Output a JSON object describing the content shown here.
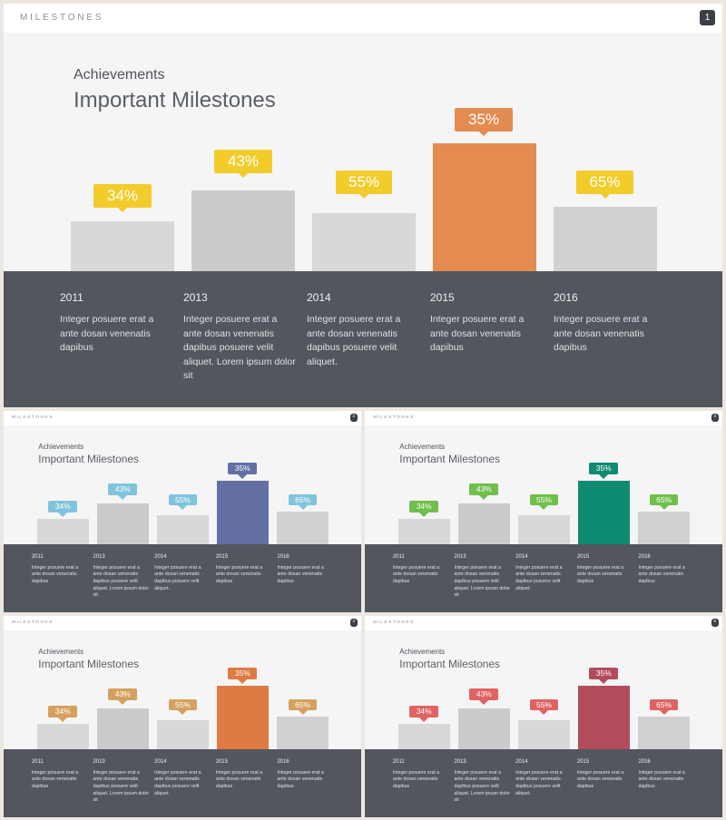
{
  "header_title": "MILESTONES",
  "subtitle": "Achievements",
  "title": "Important Milestones",
  "milestones": [
    {
      "year": "2011",
      "percent": "34%",
      "text": "Integer posuere erat a ante dosan venenatis dapibus"
    },
    {
      "year": "2013",
      "percent": "43%",
      "text": "Integer posuere erat a ante dosan venenatis dapibus posuere velit aliquet. Lorem ipsum dolor sit"
    },
    {
      "year": "2014",
      "percent": "55%",
      "text": "Integer posuere erat a ante dosan venenatis dapibus posuere velit aliquet."
    },
    {
      "year": "2015",
      "percent": "35%",
      "text": "Integer posuere erat a ante dosan venenatis dapibus"
    },
    {
      "year": "2016",
      "percent": "65%",
      "text": "Integer posuere erat a ante dosan venenatis dapibus"
    }
  ],
  "slides": [
    {
      "page": "1",
      "label_color": "#f2cc2b",
      "accent_color": "#e38b51"
    },
    {
      "page": "2",
      "label_color": "#80c4dc",
      "accent_color": "#646fa3"
    },
    {
      "page": "3",
      "label_color": "#6fbf4a",
      "accent_color": "#0f8b72"
    },
    {
      "page": "4",
      "label_color": "#d5a15f",
      "accent_color": "#df7a43"
    },
    {
      "page": "5",
      "label_color": "#e06263",
      "accent_color": "#b24b5b"
    }
  ],
  "colors": {
    "footer": "#53565c",
    "bar": "#d6d6d6",
    "background": "#f5f5f6"
  }
}
